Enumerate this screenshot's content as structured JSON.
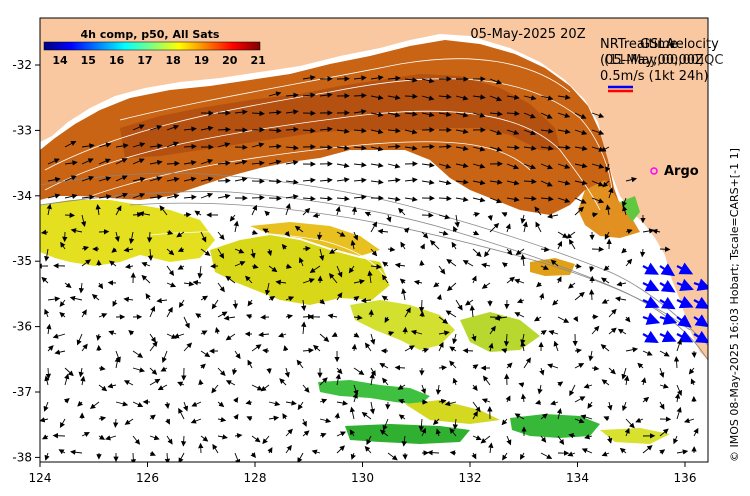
{
  "title": "05-May-2025 20Z",
  "colorbar": {
    "title": "4h comp, p50, All Sats",
    "ticks": [
      "14",
      "15",
      "16",
      "17",
      "18",
      "19",
      "20",
      "21"
    ],
    "colors": [
      "#00007f",
      "#0000ff",
      "#0080ff",
      "#00ffff",
      "#7fff7f",
      "#ffff00",
      "#ff8000",
      "#ff0000",
      "#7f0000"
    ]
  },
  "velocity_legend": {
    "line1": "NRTrealtime",
    "line1b": "GSLA",
    "line1c": "velocity",
    "line2": "(05-May;00;00Z",
    "line2b": "(11-May;00;00)QC",
    "line3": "0.5m/s (1kt 24h)",
    "arrow_color_top": "#0000ff",
    "arrow_color_bottom": "#ff0000"
  },
  "argo_label": "Argo",
  "credit": "© IMOS 08-May-2025 16:03 Hobart; Tscale=CARS+[-1 1]",
  "axes": {
    "x_ticks": [
      "124",
      "126",
      "128",
      "130",
      "132",
      "134",
      "136"
    ],
    "y_ticks": [
      "-32",
      "-33",
      "-34",
      "-35",
      "-36",
      "-37",
      "-38"
    ]
  },
  "colors": {
    "land": "#f9c8a0",
    "warm_sst": "#c86414",
    "mid_sst": "#e8a020",
    "cool_sst": "#d8e020",
    "green_sst": "#40c040",
    "arrow": "#000000",
    "arrow_strong": "#0000ff",
    "contour": "#ffffff",
    "bathy": "#888888",
    "argo": "#ff00ff"
  }
}
